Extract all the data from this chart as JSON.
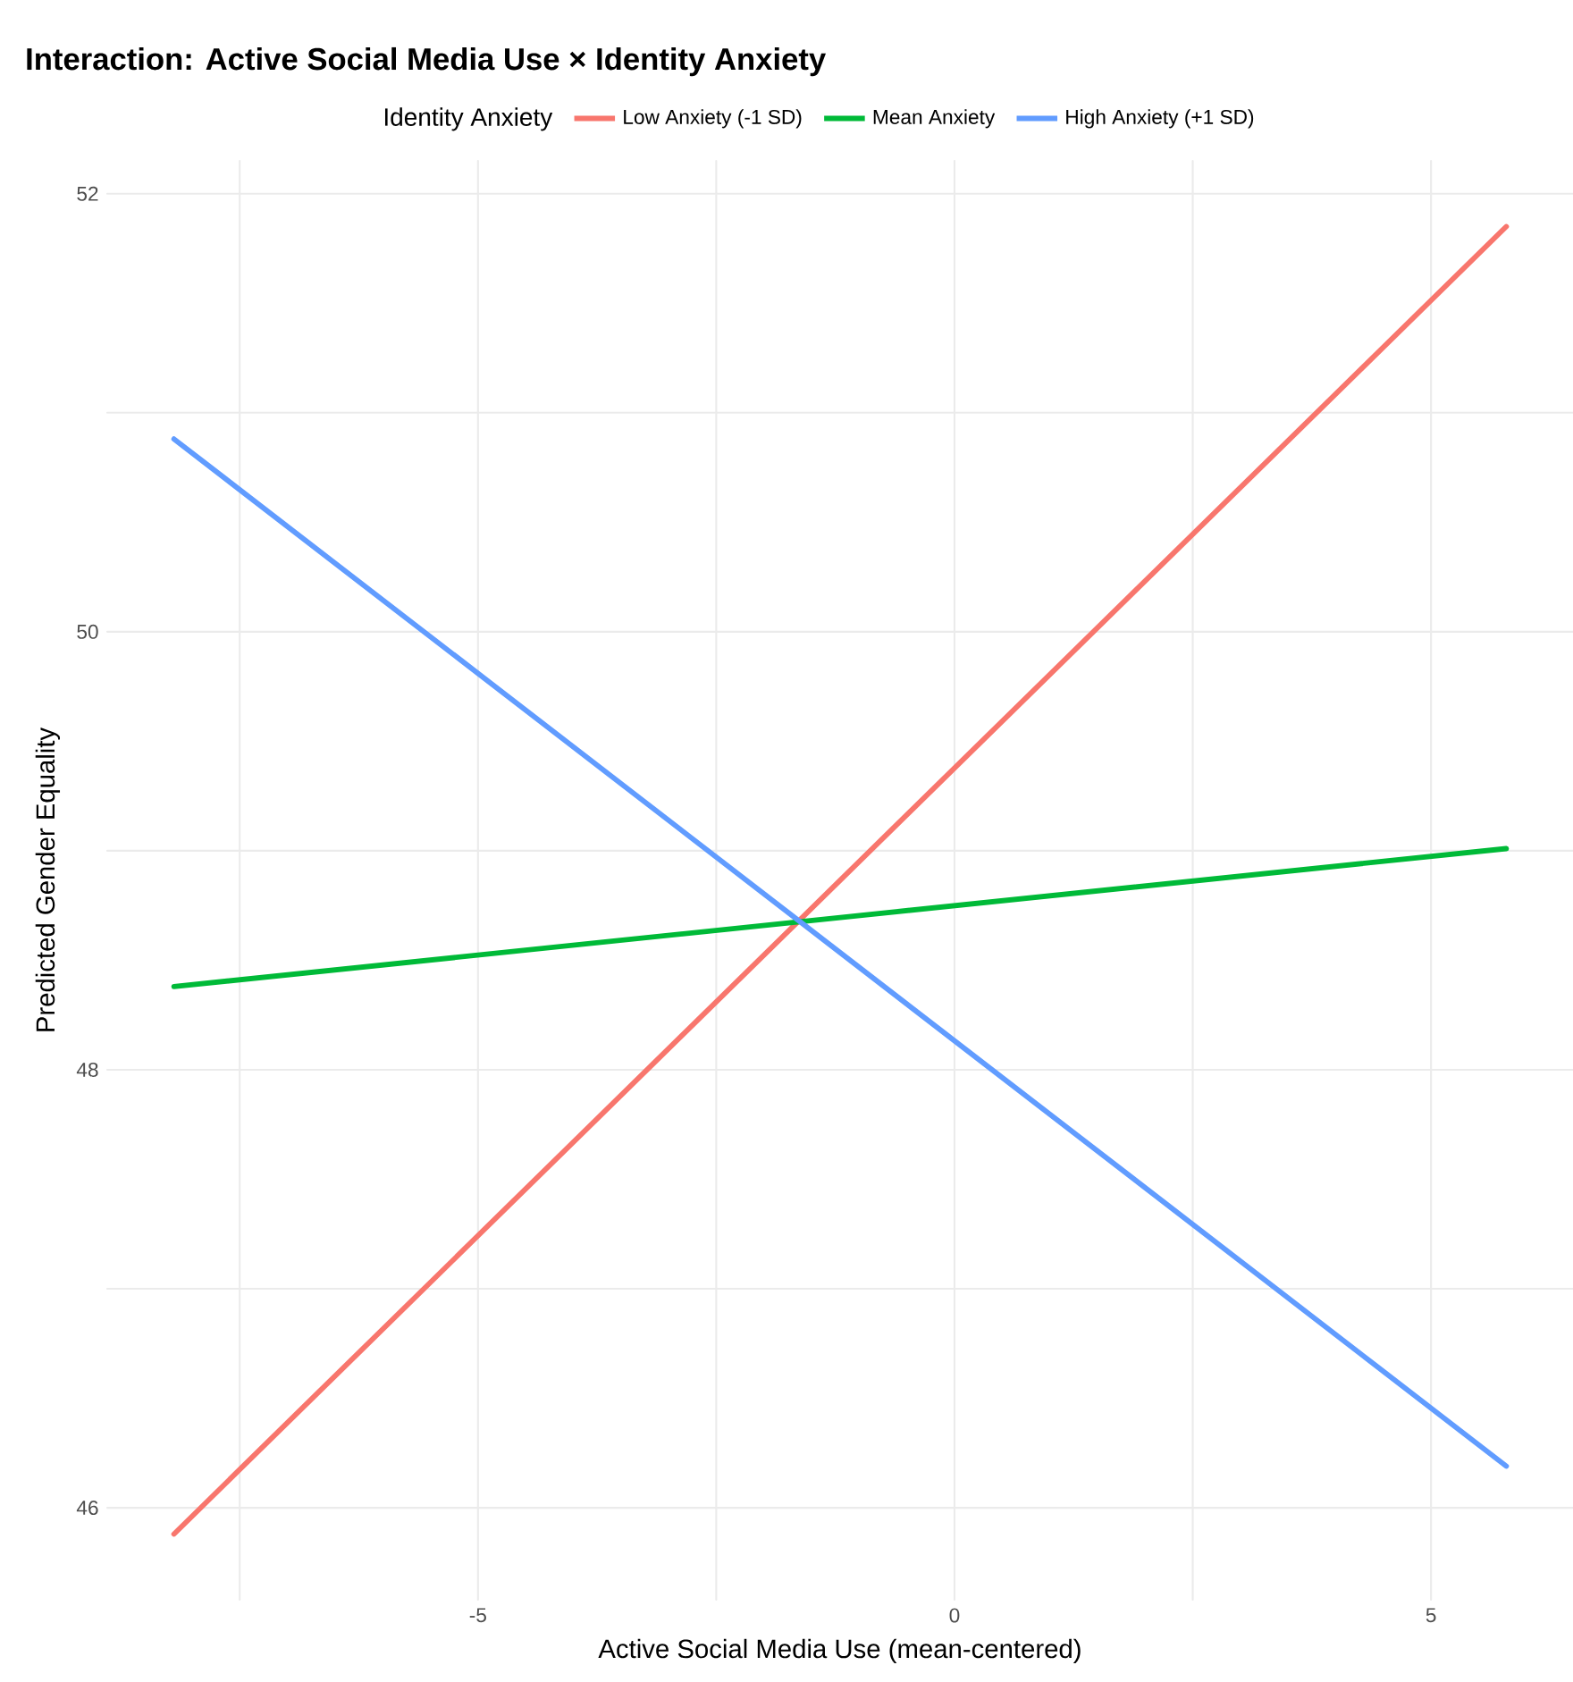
{
  "chart_data": {
    "type": "line",
    "title": "Interaction: Active Social Media Use × Identity Anxiety",
    "xlabel": "Active Social Media Use (mean-centered)",
    "ylabel": "Predicted Gender Equality",
    "legend_title": "Identity Anxiety",
    "x": [
      -8.19,
      5.79
    ],
    "series": [
      {
        "name": "Low Anxiety (-1 SD)",
        "color": "#f8766d",
        "values": [
          45.88,
          51.85
        ]
      },
      {
        "name": "Mean Anxiety",
        "color": "#00ba38",
        "values": [
          48.38,
          49.01
        ]
      },
      {
        "name": "High Anxiety (+1 SD)",
        "color": "#619cff",
        "values": [
          50.88,
          46.19
        ]
      }
    ],
    "xlim": [
      -8.89,
      6.49
    ],
    "ylim": [
      45.58,
      52.15
    ],
    "xticks": [
      {
        "value": -7.5,
        "label": null
      },
      -5,
      {
        "value": -2.5,
        "label": null
      },
      0,
      {
        "value": 2.5,
        "label": null
      },
      5
    ],
    "yticks": [
      46,
      {
        "value": 47,
        "label": null
      },
      48,
      {
        "value": 49,
        "label": null
      },
      50,
      {
        "value": 51,
        "label": null
      },
      52
    ],
    "grid": true,
    "legend": "top",
    "marker": "none",
    "line_style": "solid"
  }
}
